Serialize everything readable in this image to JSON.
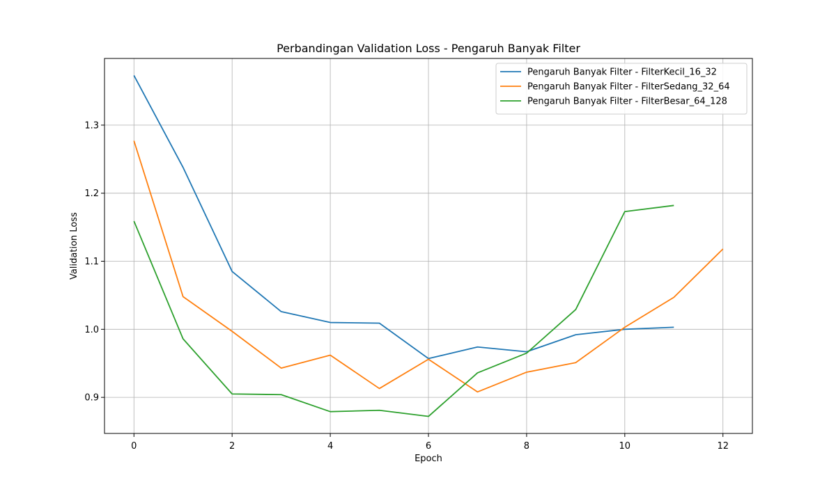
{
  "chart_data": {
    "type": "line",
    "title": "Perbandingan Validation Loss - Pengaruh Banyak Filter",
    "xlabel": "Epoch",
    "ylabel": "Validation Loss",
    "xlim": [
      -0.6,
      12.6
    ],
    "ylim": [
      0.847,
      1.398
    ],
    "xticks": [
      0,
      2,
      4,
      6,
      8,
      10,
      12
    ],
    "yticks": [
      0.9,
      1.0,
      1.1,
      1.2,
      1.3
    ],
    "ytick_labels": [
      "0.9",
      "1.0",
      "1.1",
      "1.2",
      "1.3"
    ],
    "grid": true,
    "legend_position": "top-right",
    "series": [
      {
        "name": "Pengaruh Banyak Filter - FilterKecil_16_32",
        "color": "#1f77b4",
        "x": [
          0,
          1,
          2,
          3,
          4,
          5,
          6,
          7,
          8,
          9,
          10,
          11
        ],
        "values": [
          1.373,
          1.238,
          1.085,
          1.026,
          1.01,
          1.009,
          0.957,
          0.974,
          0.967,
          0.992,
          1.0,
          1.003
        ]
      },
      {
        "name": "Pengaruh Banyak Filter - FilterSedang_32_64",
        "color": "#ff7f0e",
        "x": [
          0,
          1,
          2,
          3,
          4,
          5,
          6,
          7,
          8,
          9,
          10,
          11,
          12
        ],
        "values": [
          1.277,
          1.048,
          0.997,
          0.943,
          0.962,
          0.913,
          0.956,
          0.908,
          0.937,
          0.951,
          1.003,
          1.047,
          1.118
        ]
      },
      {
        "name": "Pengaruh Banyak Filter - FilterBesar_64_128",
        "color": "#2ca02c",
        "x": [
          0,
          1,
          2,
          3,
          4,
          5,
          6,
          7,
          8,
          9,
          10,
          11
        ],
        "values": [
          1.159,
          0.986,
          0.905,
          0.904,
          0.879,
          0.881,
          0.872,
          0.936,
          0.965,
          1.029,
          1.173,
          1.182
        ]
      }
    ]
  }
}
